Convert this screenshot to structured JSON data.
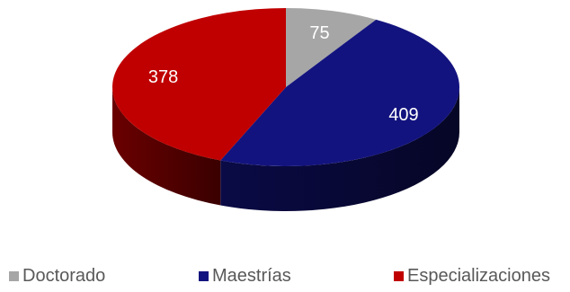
{
  "chart_data": {
    "type": "pie",
    "style": "3d",
    "title": "",
    "labels": [
      "Doctorado",
      "Maestrías",
      "Especializaciones"
    ],
    "values": [
      75,
      409,
      378
    ],
    "data_labels": [
      "75",
      "409",
      "378"
    ],
    "colors": [
      "#A6A6A6",
      "#13137F",
      "#C00000"
    ],
    "legend_position": "bottom"
  }
}
